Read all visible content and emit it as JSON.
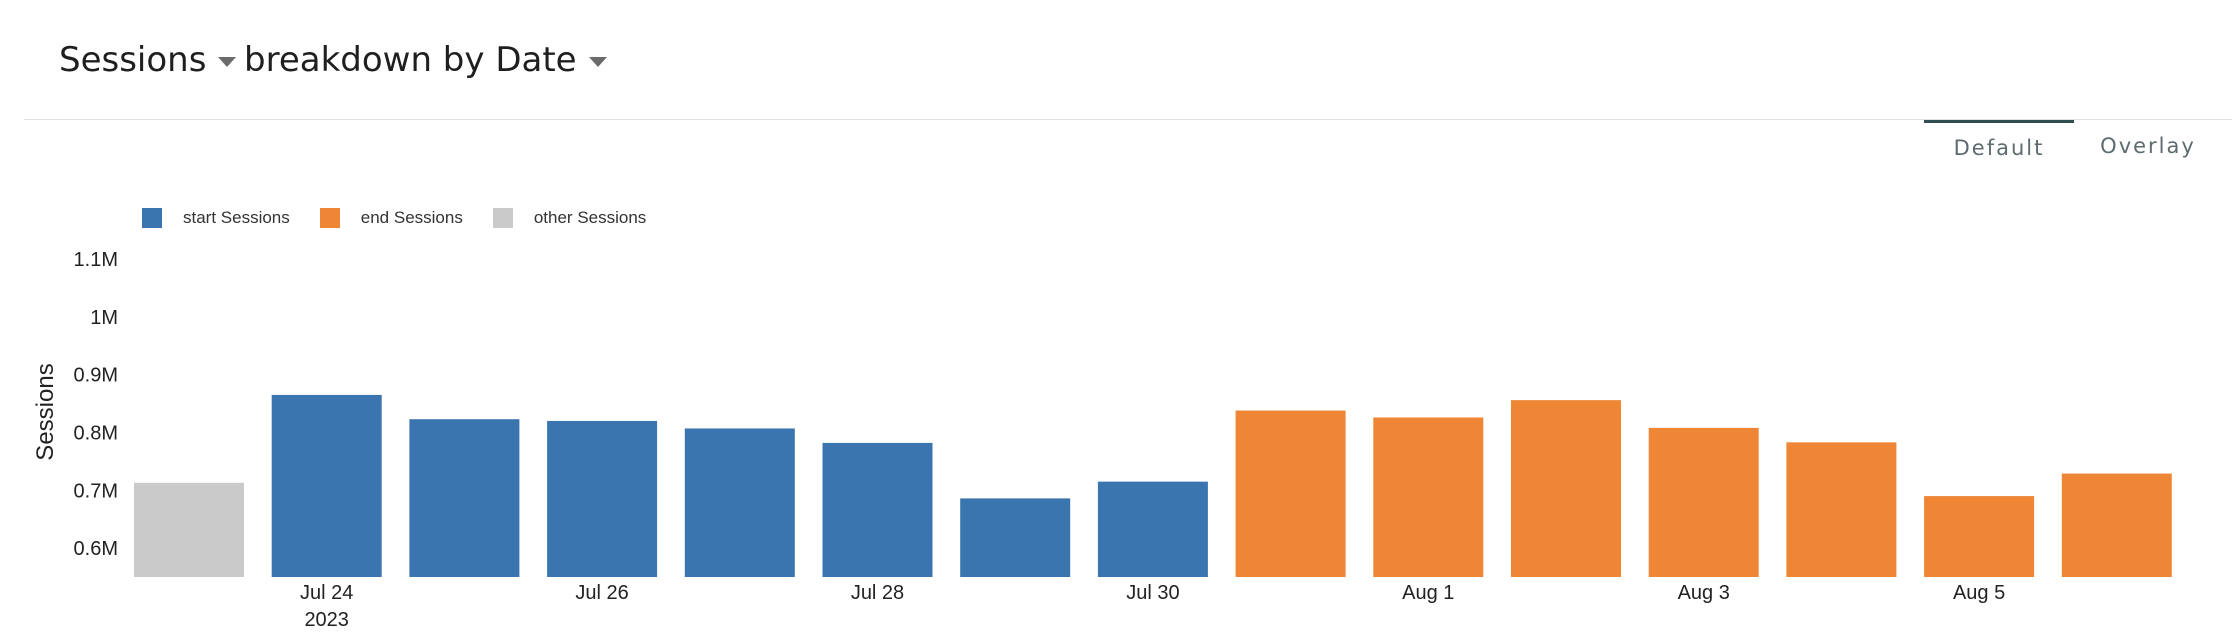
{
  "header": {
    "metric_label": "Sessions",
    "breakdown_label": "breakdown by Date"
  },
  "tabs": [
    {
      "label": "Default",
      "active": true
    },
    {
      "label": "Overlay",
      "active": false
    }
  ],
  "icons": {
    "metric_caret": "caret-down-icon",
    "breakdown_caret": "caret-down-icon"
  },
  "colors": {
    "start": "#3b75af",
    "end": "#ef8636",
    "other": "#cacaca"
  },
  "chart_data": {
    "type": "bar",
    "ylabel": "Sessions",
    "ylim": [
      550000,
      1120000
    ],
    "yticks": [
      {
        "value": 600000,
        "label": "0.6M"
      },
      {
        "value": 700000,
        "label": "0.7M"
      },
      {
        "value": 800000,
        "label": "0.8M"
      },
      {
        "value": 900000,
        "label": "0.9M"
      },
      {
        "value": 1000000,
        "label": "1M"
      },
      {
        "value": 1100000,
        "label": "1.1M"
      }
    ],
    "legend": [
      {
        "name": "start Sessions",
        "color": "#3b75af"
      },
      {
        "name": "end Sessions",
        "color": "#ef8636"
      },
      {
        "name": "other Sessions",
        "color": "#cacaca"
      }
    ],
    "legend_position": "top-left",
    "grid": false,
    "bars": [
      {
        "date": "2023-07-23",
        "series": "other Sessions",
        "value": 713000
      },
      {
        "date": "2023-07-24",
        "series": "start Sessions",
        "value": 865000
      },
      {
        "date": "2023-07-25",
        "series": "start Sessions",
        "value": 823000
      },
      {
        "date": "2023-07-26",
        "series": "start Sessions",
        "value": 820000
      },
      {
        "date": "2023-07-27",
        "series": "start Sessions",
        "value": 807000
      },
      {
        "date": "2023-07-28",
        "series": "start Sessions",
        "value": 782000
      },
      {
        "date": "2023-07-29",
        "series": "start Sessions",
        "value": 686000
      },
      {
        "date": "2023-07-30",
        "series": "start Sessions",
        "value": 715000
      },
      {
        "date": "2023-07-31",
        "series": "end Sessions",
        "value": 838000
      },
      {
        "date": "2023-08-01",
        "series": "end Sessions",
        "value": 826000
      },
      {
        "date": "2023-08-02",
        "series": "end Sessions",
        "value": 856000
      },
      {
        "date": "2023-08-03",
        "series": "end Sessions",
        "value": 808000
      },
      {
        "date": "2023-08-04",
        "series": "end Sessions",
        "value": 783000
      },
      {
        "date": "2023-08-05",
        "series": "end Sessions",
        "value": 690000
      },
      {
        "date": "2023-08-06",
        "series": "end Sessions",
        "value": 729000
      }
    ],
    "xticks": [
      {
        "date": "2023-07-24",
        "label": "Jul 24",
        "sublabel": "2023"
      },
      {
        "date": "2023-07-26",
        "label": "Jul 26"
      },
      {
        "date": "2023-07-28",
        "label": "Jul 28"
      },
      {
        "date": "2023-07-30",
        "label": "Jul 30"
      },
      {
        "date": "2023-08-01",
        "label": "Aug 1"
      },
      {
        "date": "2023-08-03",
        "label": "Aug 3"
      },
      {
        "date": "2023-08-05",
        "label": "Aug 5"
      }
    ]
  }
}
